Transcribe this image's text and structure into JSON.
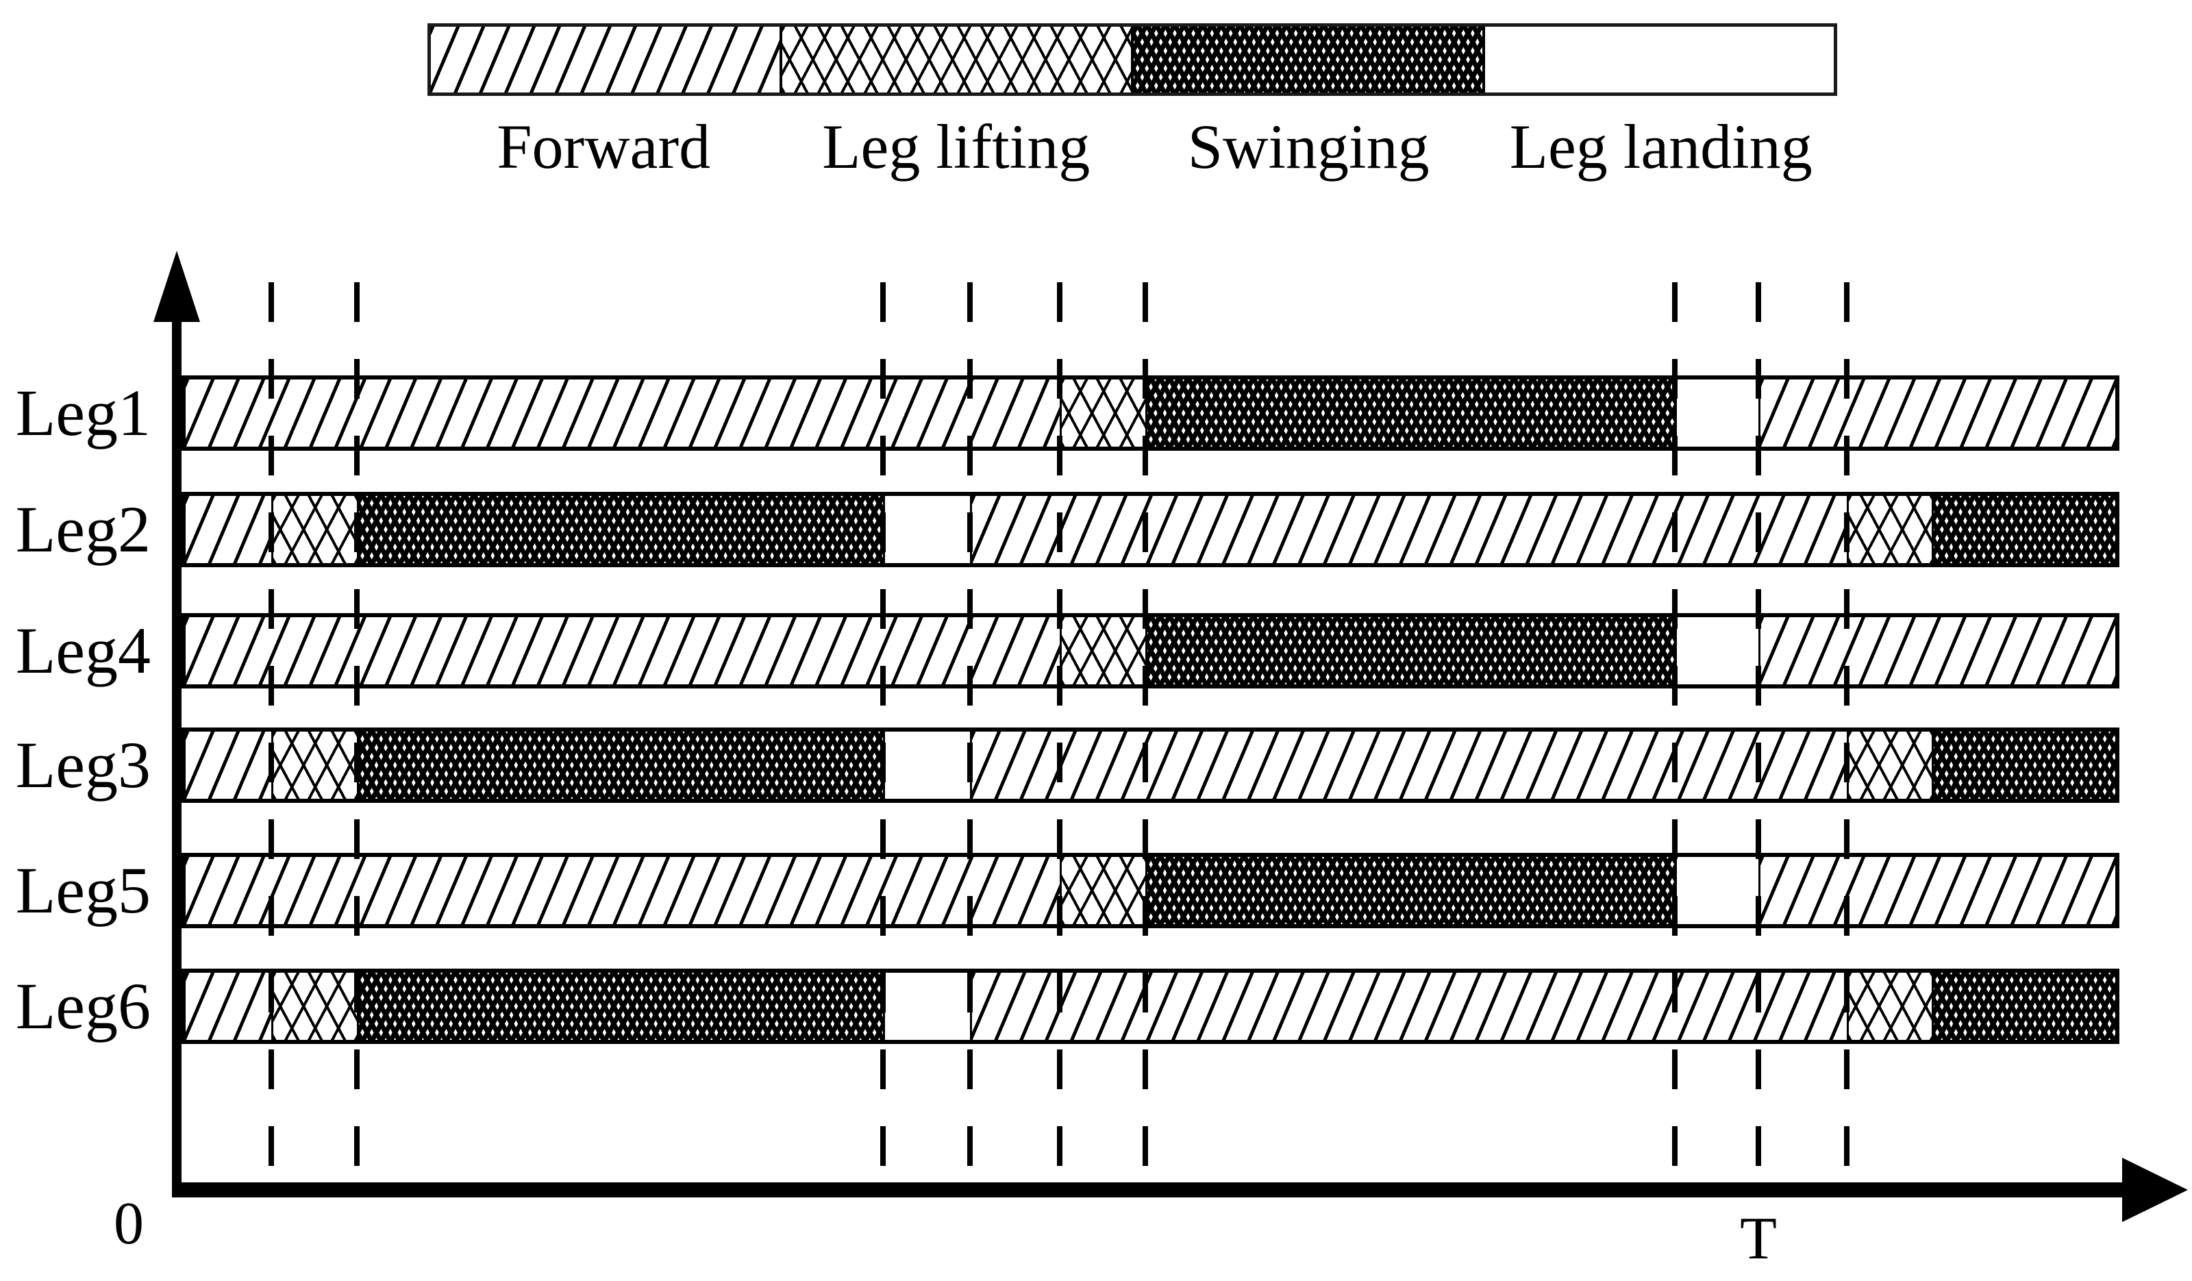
{
  "legend": {
    "items": [
      {
        "label": "Forward",
        "pattern": "diagonal-hatch"
      },
      {
        "label": "Leg lifting",
        "pattern": "crosshatch"
      },
      {
        "label": "Swinging",
        "pattern": "dense-dark-crosshatch"
      },
      {
        "label": "Leg landing",
        "pattern": "plain-white"
      }
    ]
  },
  "axes": {
    "origin_label": "0",
    "x_end_label": "T"
  },
  "colors": {
    "ink": "#000000",
    "background": "#ffffff"
  },
  "chart_data": {
    "type": "bar",
    "variant": "horizontal stacked phase-timeline (hexapod gait diagram)",
    "title": "",
    "xlabel": "",
    "ylabel": "",
    "legend_position": "top",
    "x_axis": {
      "start_label": "0",
      "period_label": "T",
      "units": "fraction of gait period T",
      "bar_right_edge_t": 1.229,
      "grid": "dashed vertical lines at phase boundaries"
    },
    "dashed_time_marks": [
      0.057,
      0.111,
      0.445,
      0.5,
      0.557,
      0.611,
      0.947,
      1.0,
      1.056
    ],
    "legs": [
      {
        "label": "Leg1",
        "segments": [
          {
            "phase": "Forward",
            "t0": 0.0,
            "t1": 0.557
          },
          {
            "phase": "Leg lifting",
            "t0": 0.557,
            "t1": 0.611
          },
          {
            "phase": "Swinging",
            "t0": 0.611,
            "t1": 0.947
          },
          {
            "phase": "Leg landing",
            "t0": 0.947,
            "t1": 1.0
          },
          {
            "phase": "Forward",
            "t0": 1.0,
            "t1": 1.229
          }
        ]
      },
      {
        "label": "Leg2",
        "segments": [
          {
            "phase": "Forward",
            "t0": 0.0,
            "t1": 0.057
          },
          {
            "phase": "Leg lifting",
            "t0": 0.057,
            "t1": 0.111
          },
          {
            "phase": "Swinging",
            "t0": 0.111,
            "t1": 0.445
          },
          {
            "phase": "Leg landing",
            "t0": 0.445,
            "t1": 0.5
          },
          {
            "phase": "Forward",
            "t0": 0.5,
            "t1": 1.056
          },
          {
            "phase": "Leg lifting",
            "t0": 1.056,
            "t1": 1.11
          },
          {
            "phase": "Swinging",
            "t0": 1.11,
            "t1": 1.229
          }
        ]
      },
      {
        "label": "Leg4",
        "segments": [
          {
            "phase": "Forward",
            "t0": 0.0,
            "t1": 0.557
          },
          {
            "phase": "Leg lifting",
            "t0": 0.557,
            "t1": 0.611
          },
          {
            "phase": "Swinging",
            "t0": 0.611,
            "t1": 0.947
          },
          {
            "phase": "Leg landing",
            "t0": 0.947,
            "t1": 1.0
          },
          {
            "phase": "Forward",
            "t0": 1.0,
            "t1": 1.229
          }
        ]
      },
      {
        "label": "Leg3",
        "segments": [
          {
            "phase": "Forward",
            "t0": 0.0,
            "t1": 0.057
          },
          {
            "phase": "Leg lifting",
            "t0": 0.057,
            "t1": 0.111
          },
          {
            "phase": "Swinging",
            "t0": 0.111,
            "t1": 0.445
          },
          {
            "phase": "Leg landing",
            "t0": 0.445,
            "t1": 0.5
          },
          {
            "phase": "Forward",
            "t0": 0.5,
            "t1": 1.056
          },
          {
            "phase": "Leg lifting",
            "t0": 1.056,
            "t1": 1.11
          },
          {
            "phase": "Swinging",
            "t0": 1.11,
            "t1": 1.229
          }
        ]
      },
      {
        "label": "Leg5",
        "segments": [
          {
            "phase": "Forward",
            "t0": 0.0,
            "t1": 0.557
          },
          {
            "phase": "Leg lifting",
            "t0": 0.557,
            "t1": 0.611
          },
          {
            "phase": "Swinging",
            "t0": 0.611,
            "t1": 0.947
          },
          {
            "phase": "Leg landing",
            "t0": 0.947,
            "t1": 1.0
          },
          {
            "phase": "Forward",
            "t0": 1.0,
            "t1": 1.229
          }
        ]
      },
      {
        "label": "Leg6",
        "segments": [
          {
            "phase": "Forward",
            "t0": 0.0,
            "t1": 0.057
          },
          {
            "phase": "Leg lifting",
            "t0": 0.057,
            "t1": 0.111
          },
          {
            "phase": "Swinging",
            "t0": 0.111,
            "t1": 0.445
          },
          {
            "phase": "Leg landing",
            "t0": 0.445,
            "t1": 0.5
          },
          {
            "phase": "Forward",
            "t0": 0.5,
            "t1": 1.056
          },
          {
            "phase": "Leg lifting",
            "t0": 1.056,
            "t1": 1.11
          },
          {
            "phase": "Swinging",
            "t0": 1.11,
            "t1": 1.229
          }
        ]
      }
    ]
  }
}
